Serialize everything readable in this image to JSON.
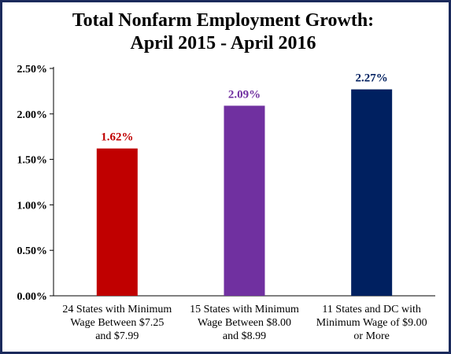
{
  "chart_data": {
    "type": "bar",
    "title_lines": [
      "Total Nonfarm Employment Growth:",
      "April 2015 - April 2016"
    ],
    "categories": [
      [
        "24 States with Minimum",
        "Wage Between $7.25",
        "and $7.99"
      ],
      [
        "15 States with Minimum",
        "Wage Between $8.00",
        "and $8.99"
      ],
      [
        "11 States and DC with",
        "Minimum Wage of $9.00",
        "or More"
      ]
    ],
    "values": [
      1.62,
      2.09,
      2.27
    ],
    "data_labels": [
      "1.62%",
      "2.09%",
      "2.27%"
    ],
    "bar_colors": [
      "#c00000",
      "#7030a0",
      "#002060"
    ],
    "y_ticks": [
      {
        "value": 0,
        "label": "0.00%"
      },
      {
        "value": 0.5,
        "label": "0.50%"
      },
      {
        "value": 1.0,
        "label": "1.00%"
      },
      {
        "value": 1.5,
        "label": "1.50%"
      },
      {
        "value": 2.0,
        "label": "2.00%"
      },
      {
        "value": 2.5,
        "label": "2.50%"
      }
    ],
    "ylim": [
      0,
      2.5
    ],
    "grid": false,
    "legend": "none"
  }
}
